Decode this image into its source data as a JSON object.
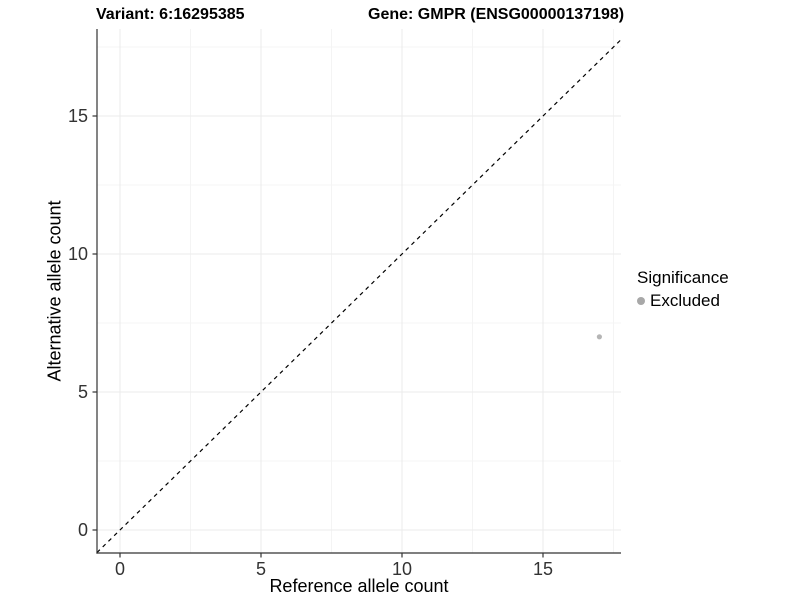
{
  "titles": {
    "variant": "Variant: 6:16295385",
    "gene": "Gene: GMPR (ENSG00000137198)"
  },
  "axes": {
    "x_label": "Reference allele count",
    "y_label": "Alternative allele count"
  },
  "legend": {
    "title": "Significance",
    "items": [
      {
        "label": "Excluded",
        "color": "#a8a8a8"
      }
    ]
  },
  "chart_data": {
    "type": "scatter",
    "title": "Variant: 6:16295385 — Gene: GMPR (ENSG00000137198)",
    "xlabel": "Reference allele count",
    "ylabel": "Alternative allele count",
    "xlim": [
      -0.85,
      17.85
    ],
    "ylim": [
      -0.85,
      18.15
    ],
    "x_ticks": [
      0,
      5,
      10,
      15
    ],
    "y_ticks": [
      0,
      5,
      10,
      15
    ],
    "x_minor_ticks": [
      2.5,
      7.5,
      12.5,
      17.5
    ],
    "y_minor_ticks": [
      2.5,
      7.5,
      12.5,
      17.5
    ],
    "grid": true,
    "legend_position": "right",
    "series": [
      {
        "name": "Excluded",
        "color": "#b5b5b5",
        "points": [
          {
            "x": 17,
            "y": 7
          }
        ]
      }
    ],
    "reference_line": {
      "slope": 1,
      "intercept": 0,
      "style": "dashed",
      "color": "#000000"
    }
  },
  "style_colors": {
    "grid_major": "#ebebeb",
    "grid_minor": "#f4f4f4",
    "axis_line": "#333333",
    "tick_label": "#333333"
  }
}
